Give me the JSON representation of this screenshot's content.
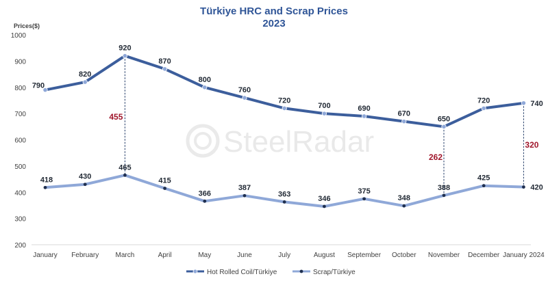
{
  "chart_data": {
    "type": "line",
    "title": "Türkiye HRC and Scrap Prices",
    "subtitle": "2023",
    "ylabel": "Prices($)",
    "ylim": [
      200,
      1000
    ],
    "yticks": [
      200,
      300,
      400,
      500,
      600,
      700,
      800,
      900,
      1000
    ],
    "grid": false,
    "legend_position": "bottom",
    "categories": [
      "January",
      "February",
      "March",
      "April",
      "May",
      "June",
      "July",
      "August",
      "September",
      "October",
      "November",
      "December",
      "January 2024"
    ],
    "series": [
      {
        "name": "Hot Rolled Coil/Türkiye",
        "color": "#3C5E9C",
        "values": [
          790,
          820,
          920,
          870,
          800,
          760,
          720,
          700,
          690,
          670,
          650,
          720,
          740
        ]
      },
      {
        "name": "Scrap/Türkiye",
        "color": "#8FA8D8",
        "values": [
          418,
          430,
          465,
          415,
          366,
          387,
          363,
          346,
          375,
          348,
          388,
          425,
          420
        ]
      }
    ],
    "spread_annotations": [
      {
        "category": "March",
        "value": 455
      },
      {
        "category": "November",
        "value": 262
      },
      {
        "category": "January 2024",
        "value": 320
      }
    ],
    "annotation_color": "#A0162B"
  },
  "watermark": {
    "text": "SteelRadar"
  }
}
